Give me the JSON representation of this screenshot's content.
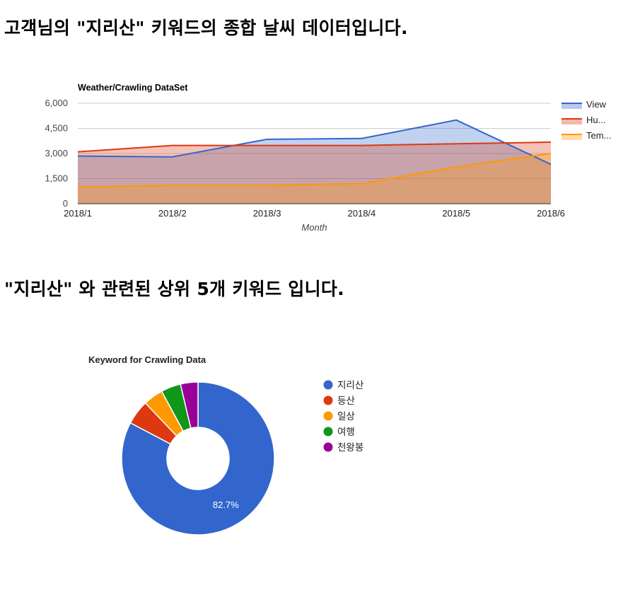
{
  "headings": {
    "summary": "고객님의 \"지리산\" 키워드의 종합 날씨 데이터입니다.",
    "keywords": "\"지리산\" 와 관련된 상위 5개 키워드 입니다."
  },
  "chart_data": [
    {
      "type": "area",
      "title": "Weather/Crawling DataSet",
      "xlabel": "Month",
      "ylabel": "",
      "categories": [
        "2018/1",
        "2018/2",
        "2018/3",
        "2018/4",
        "2018/5",
        "2018/6"
      ],
      "yticks": [
        "0",
        "1,500",
        "3,000",
        "4,500",
        "6,000"
      ],
      "ylim": [
        0,
        6000
      ],
      "grid": true,
      "legend_position": "right",
      "series": [
        {
          "name": "View",
          "legend_label": "View",
          "color": "#3366cc",
          "values": [
            2850,
            2800,
            3850,
            3900,
            5000,
            2350
          ]
        },
        {
          "name": "Hu...",
          "legend_label": "Hu...",
          "color": "#dc3912",
          "values": [
            3100,
            3480,
            3480,
            3480,
            3580,
            3680
          ]
        },
        {
          "name": "Tem...",
          "legend_label": "Tem...",
          "color": "#ff9900",
          "values": [
            1000,
            1100,
            1100,
            1200,
            2200,
            3000
          ]
        }
      ]
    },
    {
      "type": "pie",
      "title": "Keyword for Crawling Data",
      "donut": true,
      "legend_position": "right",
      "slices": [
        {
          "label": "지리산",
          "value": 82.7,
          "color": "#3366cc",
          "display": "82.7%"
        },
        {
          "label": "등산",
          "value": 5.2,
          "color": "#dc3912",
          "display": ""
        },
        {
          "label": "일상",
          "value": 4.2,
          "color": "#ff9900",
          "display": ""
        },
        {
          "label": "여행",
          "value": 4.2,
          "color": "#109618",
          "display": ""
        },
        {
          "label": "천왕봉",
          "value": 3.7,
          "color": "#990099",
          "display": ""
        }
      ]
    }
  ]
}
